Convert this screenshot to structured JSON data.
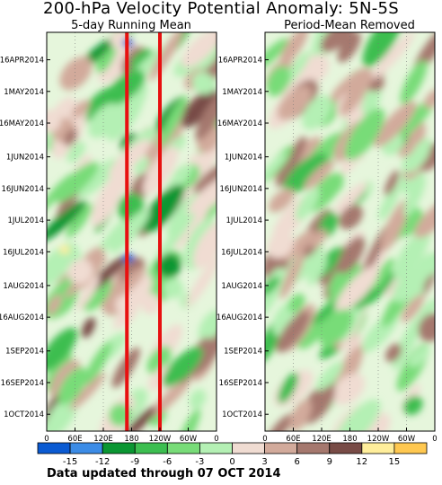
{
  "chart_data": {
    "type": "heatmap",
    "title": "200-hPa Velocity Potential Anomaly: 5N-5S",
    "panels": [
      {
        "subtitle": "5-day Running Mean",
        "vertical_lines_lon": [
          170,
          240
        ],
        "vertical_line_color": "#e81010"
      },
      {
        "subtitle": "Period-Mean Removed"
      }
    ],
    "x_ticks": [
      "0",
      "60E",
      "120E",
      "180",
      "120W",
      "60W",
      "0"
    ],
    "x_tick_lons": [
      0,
      60,
      120,
      180,
      240,
      300,
      360
    ],
    "y_ticks": [
      "16APR2014",
      "1MAY2014",
      "16MAY2014",
      "1JUN2014",
      "16JUN2014",
      "1JUL2014",
      "16JUL2014",
      "1AUG2014",
      "16AUG2014",
      "1SEP2014",
      "16SEP2014",
      "1OCT2014"
    ],
    "y_tick_days": [
      13,
      28,
      43,
      59,
      74,
      89,
      104,
      120,
      135,
      151,
      166,
      181
    ],
    "day_range": [
      0,
      189
    ],
    "colorbar": {
      "labels": [
        "-15",
        "-12",
        "-9",
        "-6",
        "-3",
        "0",
        "3",
        "6",
        "9",
        "12",
        "15"
      ],
      "colors": [
        "#0a5ad2",
        "#3c8ce6",
        "#0a9632",
        "#3cbe50",
        "#78dc78",
        "#b4f0b4",
        "#f0dcd2",
        "#d2aa9b",
        "#a5786e",
        "#784b46",
        "#ffee9b",
        "#ffc850"
      ]
    },
    "footer": "Data updated through 07 OCT 2014"
  }
}
